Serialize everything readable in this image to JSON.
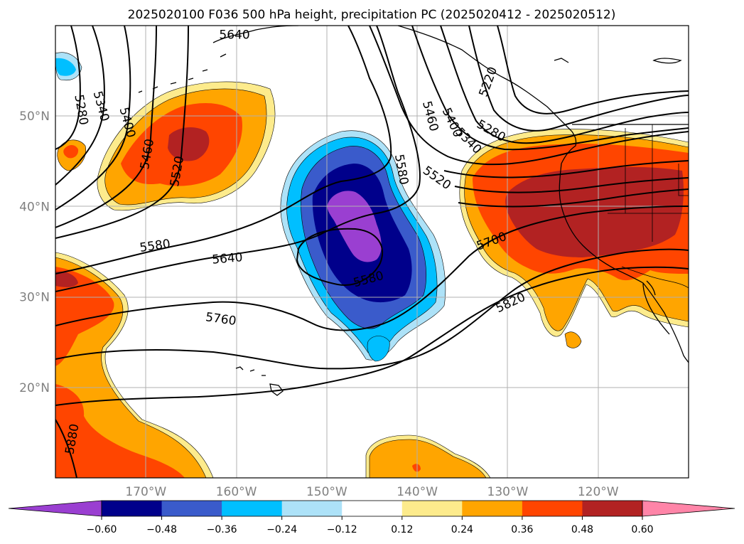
{
  "title": "2025020100 F036 500 hPa height, precipitation PC (2025020412 - 2025020512)",
  "map": {
    "lon_range": [
      -180,
      -110
    ],
    "lat_range": [
      10,
      60
    ],
    "lon_ticks": [
      {
        "lon": -170,
        "label": "170°W"
      },
      {
        "lon": -160,
        "label": "160°W"
      },
      {
        "lon": -150,
        "label": "150°W"
      },
      {
        "lon": -140,
        "label": "140°W"
      },
      {
        "lon": -130,
        "label": "130°W"
      },
      {
        "lon": -120,
        "label": "120°W"
      }
    ],
    "lat_ticks": [
      {
        "lat": 20,
        "label": "20°N"
      },
      {
        "lat": 30,
        "label": "30°N"
      },
      {
        "lat": 40,
        "label": "40°N"
      },
      {
        "lat": 50,
        "label": "50°N"
      }
    ],
    "gridlines": true
  },
  "colorbar": {
    "ticks": [
      "−0.60",
      "−0.48",
      "−0.36",
      "−0.24",
      "−0.12",
      "0.12",
      "0.24",
      "0.36",
      "0.48",
      "0.60"
    ],
    "colors": [
      "#9a3fd1",
      "#00008b",
      "#3a5bcb",
      "#00bfff",
      "#ade2f8",
      "#ffffff",
      "#fdeb8c",
      "#ffa500",
      "#ff4500",
      "#b22222",
      "#ff85a8"
    ]
  },
  "contour_labels": [
    {
      "text": "5280",
      "lon": -177.1,
      "lat": 50.7,
      "rot": 80
    },
    {
      "text": "5340",
      "lon": -174.9,
      "lat": 51.1,
      "rot": 75
    },
    {
      "text": "5400",
      "lon": -172.0,
      "lat": 49.3,
      "rot": 75
    },
    {
      "text": "5460",
      "lon": -169.9,
      "lat": 45.8,
      "rot": -80
    },
    {
      "text": "5520",
      "lon": -166.6,
      "lat": 43.9,
      "rot": -80
    },
    {
      "text": "5580",
      "lon": -169.0,
      "lat": 35.7,
      "rot": -8
    },
    {
      "text": "5640",
      "lon": -161.0,
      "lat": 34.3,
      "rot": -5
    },
    {
      "text": "5760",
      "lon": -161.7,
      "lat": 27.6,
      "rot": 8
    },
    {
      "text": "5880",
      "lon": -178.2,
      "lat": 14.3,
      "rot": -80
    },
    {
      "text": "5580",
      "lon": -145.4,
      "lat": 32.0,
      "rot": -15
    },
    {
      "text": "5580",
      "lon": -141.7,
      "lat": 44.1,
      "rot": 80
    },
    {
      "text": "5520",
      "lon": -137.8,
      "lat": 43.2,
      "rot": 35
    },
    {
      "text": "5460",
      "lon": -138.5,
      "lat": 50.0,
      "rot": 75
    },
    {
      "text": "5400",
      "lon": -136.1,
      "lat": 49.3,
      "rot": 65
    },
    {
      "text": "5340",
      "lon": -134.3,
      "lat": 47.3,
      "rot": 45
    },
    {
      "text": "5280",
      "lon": -131.8,
      "lat": 48.4,
      "rot": 30
    },
    {
      "text": "5220",
      "lon": -132.2,
      "lat": 53.8,
      "rot": -70
    },
    {
      "text": "5700",
      "lon": -131.8,
      "lat": 36.2,
      "rot": -20
    },
    {
      "text": "5820",
      "lon": -129.7,
      "lat": 29.4,
      "rot": -25
    },
    {
      "text": "5640",
      "lon": -160.2,
      "lat": 59.0,
      "rot": 0
    }
  ]
}
